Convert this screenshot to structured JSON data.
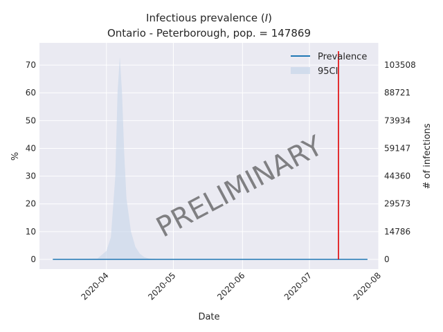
{
  "chart_data": {
    "type": "area",
    "title_line1": "Infectious prevalence (",
    "title_symbol": "I",
    "title_line1_end": ")",
    "title_line2": "Ontario - Peterborough, pop. = 147869",
    "xlabel": "Date",
    "ylabel": "%",
    "ylabel_right": "# of infections",
    "x_ticks": [
      "2020-04",
      "2020-05",
      "2020-06",
      "2020-07",
      "2020-08"
    ],
    "y_ticks": [
      0,
      10,
      20,
      30,
      40,
      50,
      60,
      70
    ],
    "y_ticks_right": [
      "0",
      "14786",
      "29573",
      "44360",
      "59147",
      "73934",
      "88721",
      "103508"
    ],
    "ylim": [
      -3.5,
      78
    ],
    "xlim": [
      "2020-03-02",
      "2020-08-01"
    ],
    "grid": true,
    "legend_position": "top-right",
    "watermark": "PRELIMINARY",
    "series": [
      {
        "name": "Prevalence",
        "color": "#1f77b4",
        "x": [
          "2020-03-08",
          "2020-04-01",
          "2020-05-01",
          "2020-06-01",
          "2020-07-01",
          "2020-07-27"
        ],
        "values": [
          0,
          0,
          0,
          0,
          0,
          0
        ]
      },
      {
        "name": "95CI",
        "color": "#c6d6ea",
        "x": [
          "2020-03-08",
          "2020-03-28",
          "2020-04-01",
          "2020-04-03",
          "2020-04-05",
          "2020-04-06",
          "2020-04-07",
          "2020-04-08",
          "2020-04-09",
          "2020-04-10",
          "2020-04-12",
          "2020-04-14",
          "2020-04-16",
          "2020-04-18",
          "2020-04-20",
          "2020-04-25",
          "2020-07-27"
        ],
        "upper": [
          0,
          0.3,
          3,
          8,
          30,
          60,
          73,
          60,
          38,
          22,
          10,
          4.5,
          2,
          0.8,
          0.3,
          0,
          0
        ],
        "lower": [
          0,
          0,
          0,
          0,
          0,
          0,
          0,
          0,
          0,
          0,
          0,
          0,
          0,
          0,
          0,
          0,
          0
        ]
      }
    ],
    "vline": {
      "x": "2020-07-14",
      "color": "#e00000"
    }
  }
}
